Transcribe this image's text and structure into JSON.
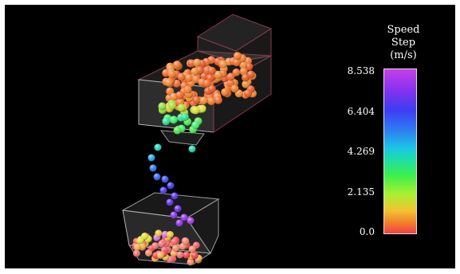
{
  "legend": {
    "title_line1": "Speed",
    "title_line2": "Step",
    "title_line3": "(m/s)",
    "ticks": [
      "8.538",
      "6.404",
      "4.269",
      "2.135",
      "0.0"
    ]
  },
  "colors": {
    "background": "#000000",
    "box_edge": "#7a2e3f",
    "box_face": "#9a9a9a",
    "slow": "#f2404a",
    "fast": "#b03cf0"
  }
}
